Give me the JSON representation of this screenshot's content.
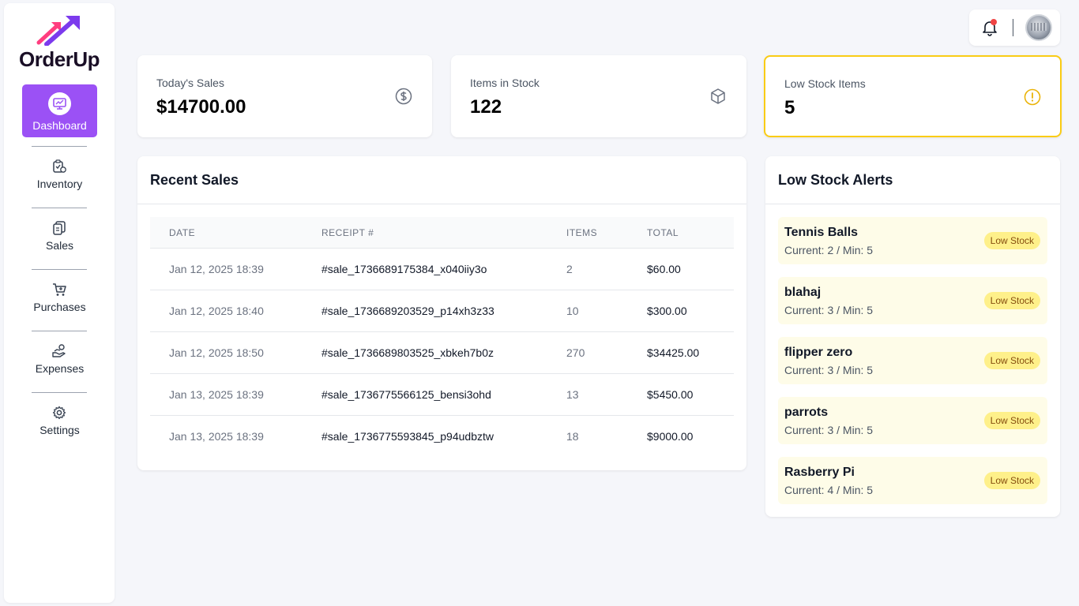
{
  "app": {
    "name": "OrderUp"
  },
  "sidebar": {
    "active": {
      "label": "Dashboard",
      "icon": "dashboard-icon"
    },
    "items": [
      {
        "label": "Inventory",
        "icon": "clipboard-check-icon"
      },
      {
        "label": "Sales",
        "icon": "receipt-icon"
      },
      {
        "label": "Purchases",
        "icon": "cart-icon"
      },
      {
        "label": "Expenses",
        "icon": "hand-coin-icon"
      },
      {
        "label": "Settings",
        "icon": "gear-icon"
      }
    ]
  },
  "stats": [
    {
      "title": "Today's Sales",
      "value": "$14700.00",
      "icon": "dollar-circle-icon"
    },
    {
      "title": "Items in Stock",
      "value": "122",
      "icon": "box-icon"
    },
    {
      "title": "Low Stock Items",
      "value": "5",
      "icon": "alert-circle-icon"
    }
  ],
  "recent_sales": {
    "title": "Recent Sales",
    "columns": [
      "DATE",
      "RECEIPT #",
      "ITEMS",
      "TOTAL"
    ],
    "rows": [
      {
        "date": "Jan 12, 2025 18:39",
        "receipt": "#sale_1736689175384_x040iiy3o",
        "items": "2",
        "total": "$60.00"
      },
      {
        "date": "Jan 12, 2025 18:40",
        "receipt": "#sale_1736689203529_p14xh3z33",
        "items": "10",
        "total": "$300.00"
      },
      {
        "date": "Jan 12, 2025 18:50",
        "receipt": "#sale_1736689803525_xbkeh7b0z",
        "items": "270",
        "total": "$34425.00"
      },
      {
        "date": "Jan 13, 2025 18:39",
        "receipt": "#sale_1736775566125_bensi3ohd",
        "items": "13",
        "total": "$5450.00"
      },
      {
        "date": "Jan 13, 2025 18:39",
        "receipt": "#sale_1736775593845_p94udbztw",
        "items": "18",
        "total": "$9000.00"
      }
    ]
  },
  "low_stock": {
    "title": "Low Stock Alerts",
    "badge": "Low Stock",
    "items": [
      {
        "name": "Tennis Balls",
        "meta": "Current: 2 / Min: 5"
      },
      {
        "name": "blahaj",
        "meta": "Current: 3 / Min: 5"
      },
      {
        "name": "flipper zero",
        "meta": "Current: 3 / Min: 5"
      },
      {
        "name": "parrots",
        "meta": "Current: 3 / Min: 5"
      },
      {
        "name": "Rasberry Pi",
        "meta": "Current: 4 / Min: 5"
      }
    ]
  },
  "colors": {
    "accent": "#9b51f5",
    "warning": "#facc15",
    "badge_bg": "#fef08a",
    "alert_bg": "#fefce8",
    "notification": "#ef4444"
  }
}
